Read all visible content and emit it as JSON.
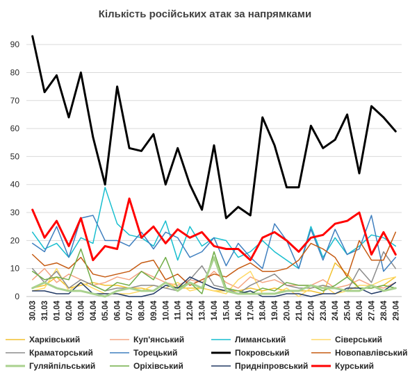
{
  "chart_data": {
    "type": "line",
    "title": "Кількість російських атак за напрямками",
    "xlabel": "",
    "ylabel": "",
    "ylim": [
      0,
      95
    ],
    "yticks": [
      0,
      10,
      20,
      30,
      40,
      50,
      60,
      70,
      80,
      90
    ],
    "grid": "horizontal",
    "legend_position": "bottom",
    "categories": [
      "30.03",
      "31.03",
      "01.04",
      "02.04",
      "03.04",
      "04.04",
      "05.04",
      "06.04",
      "07.04",
      "08.04",
      "09.04",
      "10.04",
      "11.04",
      "12.04",
      "13.04",
      "14.04",
      "15.04",
      "16.04",
      "17.04",
      "18.04",
      "19.04",
      "20.04",
      "21.04",
      "22.04",
      "23.04",
      "24.04",
      "25.04",
      "26.04",
      "27.04",
      "28.04",
      "29.04"
    ],
    "series": [
      {
        "name": "Харківський",
        "color": "#f2c12e",
        "width": 1.5,
        "values": [
          3,
          4,
          7,
          3,
          4,
          5,
          4,
          4,
          3,
          3,
          2,
          5,
          3,
          3,
          3,
          2,
          2,
          2,
          3,
          2,
          3,
          2,
          2,
          2,
          1,
          12,
          8,
          3,
          3,
          4,
          7
        ]
      },
      {
        "name": "Куп'янський",
        "color": "#f4a582",
        "width": 1.5,
        "values": [
          6,
          10,
          5,
          8,
          6,
          4,
          5,
          7,
          6,
          9,
          7,
          5,
          4,
          6,
          5,
          9,
          5,
          3,
          7,
          5,
          6,
          4,
          4,
          4,
          6,
          3,
          4,
          6,
          4,
          3,
          5
        ]
      },
      {
        "name": "Лиманський",
        "color": "#17becf",
        "width": 1.5,
        "values": [
          23,
          17,
          19,
          14,
          21,
          19,
          39,
          26,
          22,
          21,
          18,
          27,
          13,
          25,
          18,
          21,
          20,
          14,
          16,
          20,
          16,
          13,
          10,
          25,
          14,
          21,
          15,
          18,
          22,
          21,
          18
        ]
      },
      {
        "name": "Сіверський",
        "color": "#ffd966",
        "width": 1.5,
        "values": [
          2,
          3,
          10,
          2,
          5,
          3,
          1,
          1,
          1,
          2,
          4,
          3,
          5,
          2,
          3,
          2,
          1,
          6,
          9,
          1,
          1,
          3,
          0,
          3,
          4,
          1,
          2,
          4,
          4,
          6,
          7
        ]
      },
      {
        "name": "Краматорський",
        "color": "#8c8c8c",
        "width": 1.5,
        "values": [
          10,
          5,
          9,
          3,
          6,
          4,
          2,
          3,
          3,
          4,
          4,
          3,
          2,
          6,
          11,
          4,
          3,
          1,
          4,
          6,
          8,
          4,
          3,
          3,
          4,
          3,
          2,
          10,
          5,
          16,
          10
        ]
      },
      {
        "name": "Торецький",
        "color": "#3f7fbf",
        "width": 1.5,
        "values": [
          19,
          16,
          25,
          14,
          28,
          29,
          20,
          20,
          18,
          23,
          17,
          23,
          21,
          14,
          16,
          21,
          11,
          19,
          14,
          10,
          26,
          20,
          10,
          24,
          13,
          24,
          15,
          17,
          29,
          9,
          14
        ]
      },
      {
        "name": "Покровський",
        "color": "#000000",
        "width": 3,
        "values": [
          93,
          73,
          79,
          64,
          80,
          57,
          40,
          75,
          53,
          52,
          58,
          40,
          53,
          40,
          31,
          54,
          28,
          32,
          29,
          64,
          54,
          39,
          39,
          61,
          53,
          56,
          65,
          44,
          68,
          64,
          59
        ]
      },
      {
        "name": "Новопавлівський",
        "color": "#c55a11",
        "width": 1.5,
        "values": [
          15,
          11,
          12,
          10,
          14,
          8,
          7,
          8,
          9,
          12,
          13,
          6,
          8,
          4,
          6,
          8,
          7,
          10,
          12,
          9,
          9,
          10,
          13,
          19,
          17,
          14,
          7,
          20,
          13,
          13,
          23
        ]
      },
      {
        "name": "Гуляйпільський",
        "color": "#a9d18e",
        "width": 3,
        "values": [
          3,
          5,
          3,
          2,
          2,
          1,
          0,
          2,
          3,
          2,
          2,
          5,
          2,
          5,
          3,
          14,
          2,
          1,
          1,
          1,
          1,
          2,
          2,
          4,
          3,
          3,
          2,
          2,
          4,
          2,
          3
        ]
      },
      {
        "name": "Оріхівський",
        "color": "#70ad47",
        "width": 1.5,
        "values": [
          9,
          6,
          7,
          6,
          17,
          4,
          2,
          5,
          4,
          9,
          6,
          14,
          3,
          5,
          1,
          16,
          3,
          2,
          1,
          3,
          2,
          5,
          4,
          4,
          2,
          4,
          7,
          3,
          3,
          4,
          3
        ]
      },
      {
        "name": "Придніпровський",
        "color": "#203864",
        "width": 1.5,
        "values": [
          2,
          2,
          1,
          1,
          5,
          1,
          1,
          1,
          0,
          0,
          1,
          4,
          3,
          7,
          5,
          3,
          2,
          1,
          2,
          0,
          0,
          1,
          1,
          0,
          1,
          1,
          3,
          3,
          1,
          2,
          5
        ]
      },
      {
        "name": "Курський",
        "color": "#ff0000",
        "width": 3,
        "values": [
          31,
          21,
          27,
          18,
          28,
          13,
          18,
          17,
          35,
          21,
          25,
          19,
          24,
          21,
          23,
          18,
          17,
          17,
          13,
          21,
          23,
          20,
          16,
          21,
          22,
          26,
          27,
          30,
          15,
          23,
          15
        ]
      }
    ]
  }
}
